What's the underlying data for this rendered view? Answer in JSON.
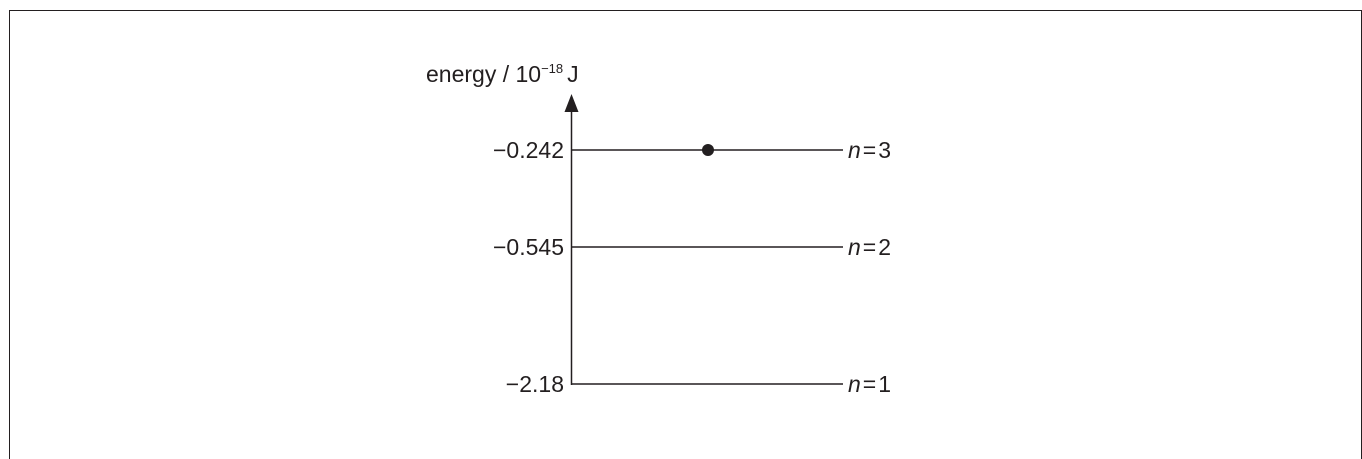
{
  "axis": {
    "title_main": "energy / 10",
    "title_exponent": "−18",
    "title_unit": "J"
  },
  "levels": [
    {
      "energy_label": "−0.242",
      "n_symbol": "n",
      "equals": "=",
      "n_value": "3",
      "electron": true
    },
    {
      "energy_label": "−0.545",
      "n_symbol": "n",
      "equals": "=",
      "n_value": "2",
      "electron": false
    },
    {
      "energy_label": "−2.18",
      "n_symbol": "n",
      "equals": "=",
      "n_value": "1",
      "electron": false
    }
  ],
  "colors": {
    "ink": "#231f20",
    "background": "#ffffff"
  }
}
